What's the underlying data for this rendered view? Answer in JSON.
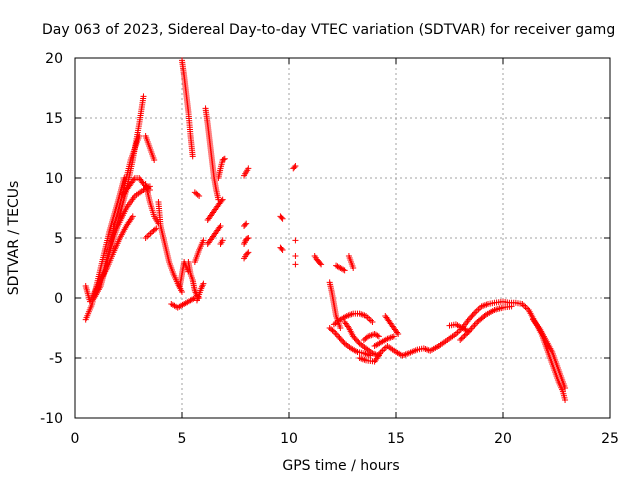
{
  "chart_data": {
    "type": "scatter",
    "title": "Day 063 of 2023, Sidereal Day-to-day VTEC variation (SDTVAR) for receiver gamg",
    "xlabel": "GPS time / hours",
    "ylabel": "SDTVAR / TECUs",
    "xlim": [
      0,
      25
    ],
    "ylim": [
      -10,
      20
    ],
    "xticks": [
      0,
      5,
      10,
      15,
      20,
      25
    ],
    "yticks": [
      -10,
      -5,
      0,
      5,
      10,
      15,
      20
    ],
    "grid": true,
    "marker": "+",
    "series": [
      {
        "name": "SDTVAR",
        "color": "#ff0000",
        "segments": [
          {
            "x": [
              0.5,
              0.8,
              1.2,
              1.6,
              2.0,
              2.3
            ],
            "y": [
              -1.8,
              -0.5,
              2.5,
              5.5,
              8.0,
              10.0
            ]
          },
          {
            "x": [
              0.5,
              0.7,
              1.0,
              1.3,
              1.6,
              1.9,
              2.2,
              2.6,
              3.0
            ],
            "y": [
              1.0,
              -0.3,
              0.8,
              2.0,
              4.0,
              6.5,
              8.5,
              11.5,
              13.5
            ]
          },
          {
            "x": [
              0.9,
              1.2,
              1.5,
              1.8,
              2.1,
              2.4,
              2.7,
              3.0,
              3.2
            ],
            "y": [
              0.0,
              1.0,
              3.0,
              5.0,
              7.0,
              9.0,
              11.5,
              14.5,
              16.8
            ]
          },
          {
            "x": [
              1.8,
              2.0,
              2.2,
              2.4,
              2.6,
              2.8,
              3.0,
              3.2,
              3.5
            ],
            "y": [
              6.0,
              7.0,
              8.5,
              9.0,
              9.5,
              10.0,
              10.0,
              9.5,
              9.0
            ]
          },
          {
            "x": [
              1.6,
              2.0,
              2.4,
              2.8,
              3.2,
              3.5
            ],
            "y": [
              4.0,
              6.0,
              7.5,
              8.5,
              9.0,
              9.3
            ]
          },
          {
            "x": [
              1.2,
              1.5,
              1.8,
              2.1,
              2.4,
              2.7
            ],
            "y": [
              1.5,
              2.5,
              3.8,
              5.0,
              6.0,
              6.8
            ]
          },
          {
            "x": [
              3.3,
              3.5,
              3.7
            ],
            "y": [
              13.5,
              12.5,
              11.5
            ]
          },
          {
            "x": [
              3.3,
              3.5,
              3.7,
              3.9
            ],
            "y": [
              9.5,
              8.0,
              6.8,
              6.2
            ]
          },
          {
            "x": [
              3.3,
              3.6,
              3.8
            ],
            "y": [
              5.0,
              5.5,
              5.8
            ]
          },
          {
            "x": [
              3.9,
              4.0,
              4.2,
              4.4,
              4.6,
              4.8,
              5.0
            ],
            "y": [
              8.0,
              6.0,
              4.5,
              3.0,
              2.0,
              1.2,
              0.5
            ]
          },
          {
            "x": [
              4.5,
              4.8,
              5.1,
              5.4,
              5.6
            ],
            "y": [
              -0.5,
              -0.8,
              -0.5,
              -0.2,
              0.0
            ]
          },
          {
            "x": [
              4.9,
              5.0,
              5.1,
              5.3
            ],
            "y": [
              1.0,
              2.0,
              3.0,
              2.2
            ]
          },
          {
            "x": [
              5.0,
              5.1,
              5.2,
              5.3,
              5.4,
              5.5
            ],
            "y": [
              19.8,
              18.5,
              17.0,
              15.5,
              13.5,
              11.8
            ]
          },
          {
            "x": [
              5.3,
              5.4,
              5.5,
              5.6,
              5.7,
              5.8
            ],
            "y": [
              3.0,
              2.0,
              1.5,
              0.6,
              0.2,
              0.0
            ]
          },
          {
            "x": [
              5.7,
              5.8,
              5.9,
              6.0
            ],
            "y": [
              -0.2,
              0.3,
              0.8,
              1.2
            ]
          },
          {
            "x": [
              5.6,
              5.8,
              6.0
            ],
            "y": [
              3.0,
              4.0,
              4.8
            ]
          },
          {
            "x": [
              5.6,
              5.8
            ],
            "y": [
              8.8,
              8.5
            ]
          },
          {
            "x": [
              6.1,
              6.2,
              6.3,
              6.4,
              6.5,
              6.6,
              6.7
            ],
            "y": [
              15.8,
              14.5,
              13.0,
              11.5,
              10.0,
              9.0,
              8.2
            ]
          },
          {
            "x": [
              6.2,
              6.4,
              6.6,
              6.8
            ],
            "y": [
              4.5,
              5.0,
              5.5,
              6.0
            ]
          },
          {
            "x": [
              6.2,
              6.4,
              6.6,
              6.8,
              6.9
            ],
            "y": [
              6.5,
              7.0,
              7.5,
              8.0,
              8.2
            ]
          },
          {
            "x": [
              6.7,
              6.8,
              6.9,
              7.0
            ],
            "y": [
              10.0,
              10.8,
              11.5,
              11.6
            ]
          },
          {
            "x": [
              6.8,
              6.9
            ],
            "y": [
              4.5,
              4.8
            ]
          },
          {
            "x": [
              7.9,
              8.0,
              8.1
            ],
            "y": [
              10.2,
              10.5,
              10.8
            ]
          },
          {
            "x": [
              7.9,
              8.0
            ],
            "y": [
              6.0,
              6.2
            ]
          },
          {
            "x": [
              7.9,
              8.0,
              8.1
            ],
            "y": [
              4.5,
              4.9,
              5.0
            ]
          },
          {
            "x": [
              7.9,
              8.0,
              8.1
            ],
            "y": [
              3.3,
              3.6,
              3.8
            ]
          },
          {
            "x": [
              9.6,
              9.7
            ],
            "y": [
              6.8,
              6.6
            ]
          },
          {
            "x": [
              9.6,
              9.7
            ],
            "y": [
              4.2,
              4.0
            ]
          },
          {
            "x": [
              10.2,
              10.3
            ],
            "y": [
              10.8,
              11.0
            ]
          },
          {
            "x": [
              10.3
            ],
            "y": [
              4.8
            ]
          },
          {
            "x": [
              10.3
            ],
            "y": [
              3.5
            ]
          },
          {
            "x": [
              10.3
            ],
            "y": [
              2.8
            ]
          },
          {
            "x": [
              11.2,
              11.3,
              11.4,
              11.5
            ],
            "y": [
              3.5,
              3.2,
              3.0,
              2.8
            ]
          },
          {
            "x": [
              12.2,
              12.4,
              12.6
            ],
            "y": [
              2.7,
              2.5,
              2.3
            ]
          },
          {
            "x": [
              12.8,
              12.9,
              13.0
            ],
            "y": [
              3.5,
              3.0,
              2.5
            ]
          },
          {
            "x": [
              11.9,
              12.0,
              12.1,
              12.2,
              12.4
            ],
            "y": [
              1.3,
              0.5,
              -0.5,
              -1.5,
              -2.5
            ]
          },
          {
            "x": [
              11.9,
              12.1,
              12.3,
              12.6,
              12.9,
              13.2,
              13.5,
              13.8
            ],
            "y": [
              -2.5,
              -2.8,
              -3.2,
              -3.8,
              -4.2,
              -4.5,
              -4.6,
              -4.8
            ]
          },
          {
            "x": [
              12.1,
              12.4,
              12.7,
              13.0,
              13.3,
              13.6,
              13.9
            ],
            "y": [
              -2.2,
              -1.8,
              -1.5,
              -1.3,
              -1.3,
              -1.5,
              -2.0
            ]
          },
          {
            "x": [
              12.6,
              12.8,
              13.0,
              13.3,
              13.6,
              13.9,
              14.2
            ],
            "y": [
              -2.0,
              -2.5,
              -3.2,
              -3.8,
              -4.2,
              -4.6,
              -4.8
            ]
          },
          {
            "x": [
              13.3,
              13.6,
              14.0,
              14.3,
              14.6,
              15.0,
              15.3,
              15.6,
              16.0,
              16.3,
              16.6,
              17.0
            ],
            "y": [
              -5.0,
              -5.2,
              -5.3,
              -4.5,
              -4.0,
              -4.5,
              -4.8,
              -4.6,
              -4.3,
              -4.2,
              -4.4,
              -4.0
            ]
          },
          {
            "x": [
              13.5,
              13.7,
              14.0,
              14.2
            ],
            "y": [
              -3.5,
              -3.2,
              -3.0,
              -3.2
            ]
          },
          {
            "x": [
              14.5,
              14.7,
              14.9,
              15.1
            ],
            "y": [
              -1.5,
              -2.0,
              -2.5,
              -3.0
            ]
          },
          {
            "x": [
              14.0,
              14.3,
              14.6,
              14.9
            ],
            "y": [
              -4.0,
              -3.7,
              -3.4,
              -3.2
            ]
          },
          {
            "x": [
              17.0,
              17.4,
              17.8,
              18.1,
              18.4,
              18.7,
              19.0,
              19.3,
              19.6,
              20.0,
              20.3,
              20.6,
              20.9
            ],
            "y": [
              -4.0,
              -3.5,
              -3.0,
              -2.5,
              -1.8,
              -1.2,
              -0.7,
              -0.5,
              -0.4,
              -0.3,
              -0.4,
              -0.4,
              -0.5
            ]
          },
          {
            "x": [
              17.5,
              17.8,
              18.1,
              18.4
            ],
            "y": [
              -2.3,
              -2.2,
              -2.5,
              -2.8
            ]
          },
          {
            "x": [
              18.0,
              18.4,
              18.8,
              19.2,
              19.6,
              20.0,
              20.4
            ],
            "y": [
              -3.5,
              -2.8,
              -2.0,
              -1.4,
              -1.0,
              -0.8,
              -0.7
            ]
          },
          {
            "x": [
              20.9,
              21.2,
              21.5,
              21.8,
              22.0,
              22.2,
              22.4,
              22.6,
              22.8,
              22.9
            ],
            "y": [
              -0.5,
              -1.0,
              -2.0,
              -3.0,
              -4.0,
              -5.0,
              -6.0,
              -7.0,
              -7.8,
              -8.5
            ]
          },
          {
            "x": [
              21.4,
              21.7,
              22.0,
              22.3,
              22.5,
              22.7,
              22.9
            ],
            "y": [
              -1.8,
              -2.5,
              -3.5,
              -4.5,
              -5.5,
              -6.5,
              -7.5
            ]
          }
        ]
      }
    ]
  }
}
